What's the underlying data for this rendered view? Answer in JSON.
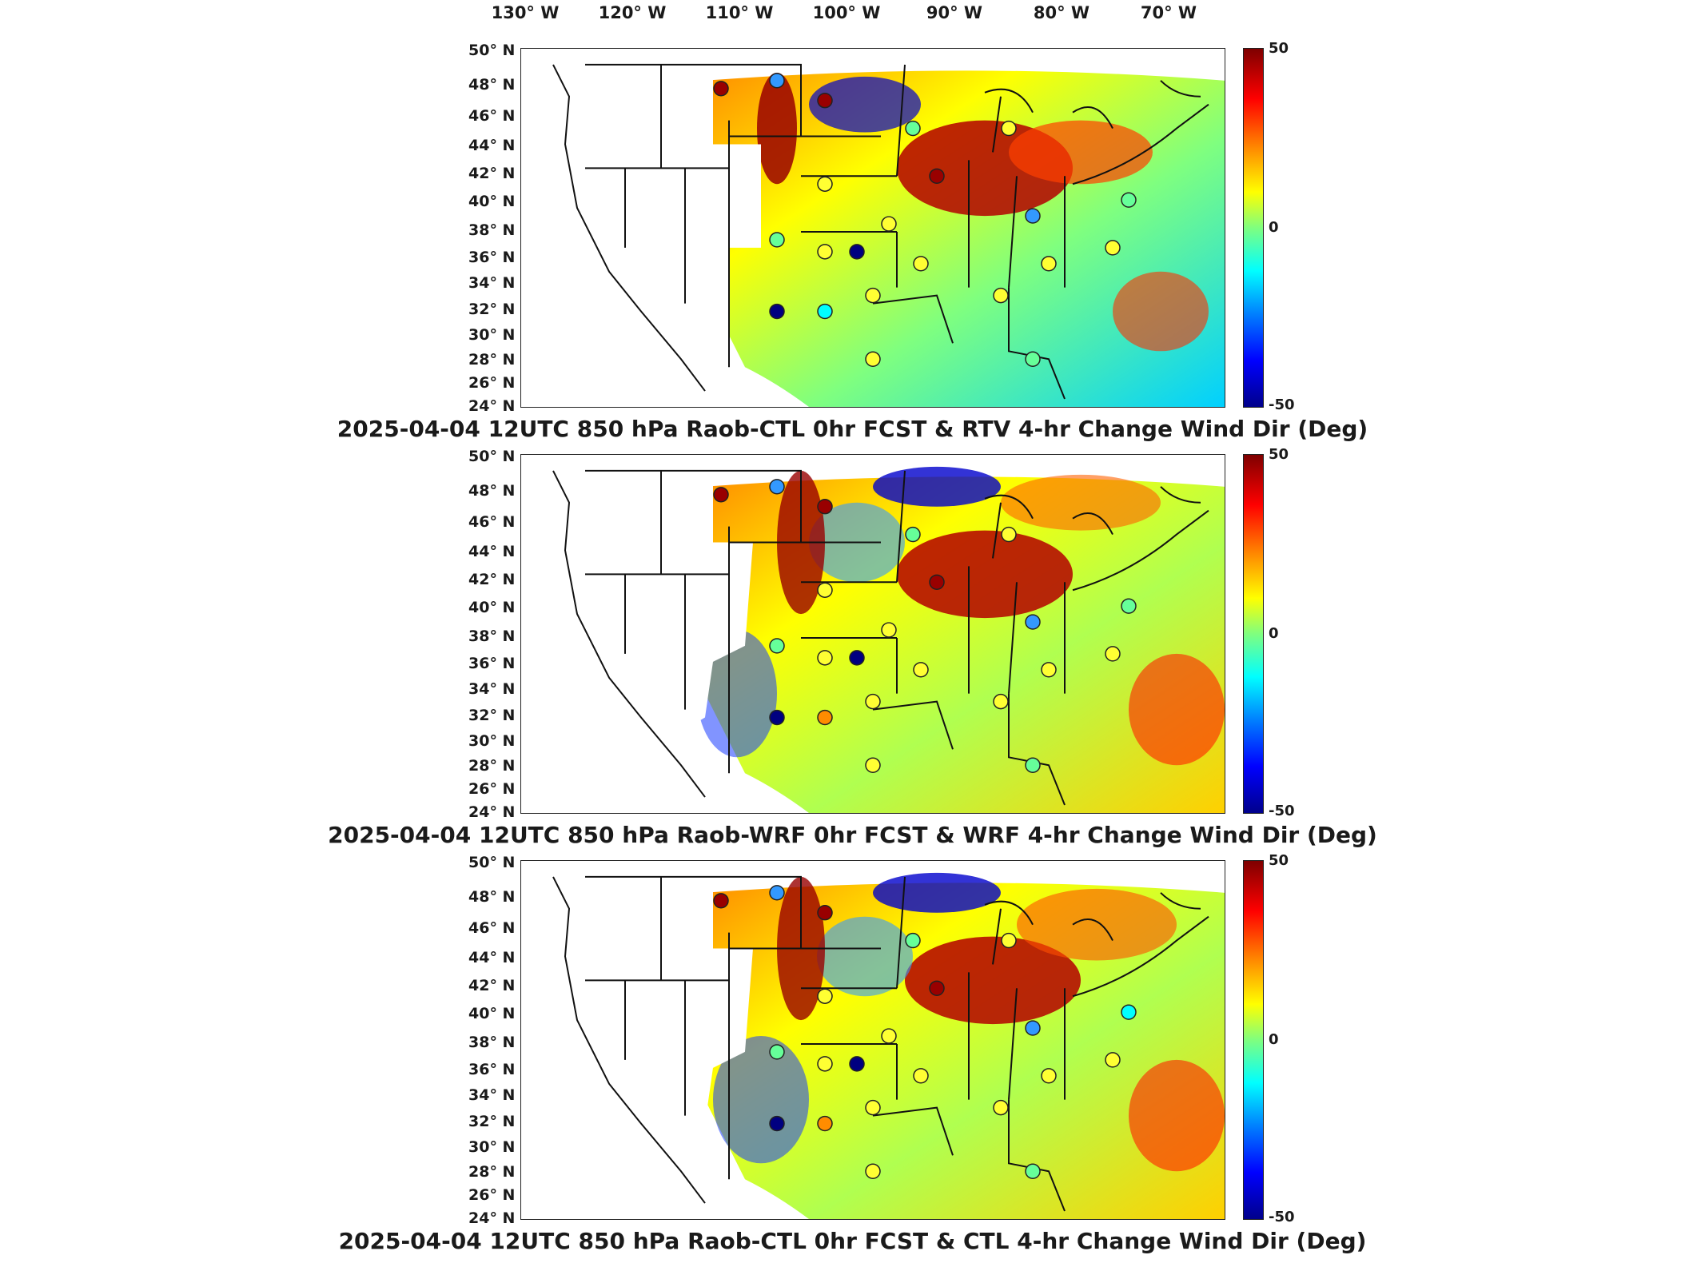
{
  "longitude_labels": [
    "130° W",
    "120° W",
    "110° W",
    "100° W",
    "90° W",
    "80° W",
    "70° W"
  ],
  "latitude_labels": [
    "50° N",
    "48° N",
    "46° N",
    "44° N",
    "42° N",
    "40° N",
    "38° N",
    "36° N",
    "34° N",
    "32° N",
    "30° N",
    "28° N",
    "26° N",
    "24° N"
  ],
  "colorbar": {
    "max_label": "50",
    "mid_label": "0",
    "min_label": "-50",
    "colors": [
      "#7f0000",
      "#ff0000",
      "#ff8c00",
      "#ffff00",
      "#7fff7f",
      "#00ffff",
      "#0080ff",
      "#0000ff",
      "#00008b"
    ]
  },
  "panels": [
    {
      "title": "2025-04-04 12UTC 850 hPa Raob-CTL 0hr FCST & RTV 4-hr Change Wind Dir (Deg)"
    },
    {
      "title": "2025-04-04 12UTC 850 hPa Raob-WRF 0hr FCST & WRF 4-hr Change Wind Dir (Deg)"
    },
    {
      "title": "2025-04-04 12UTC 850 hPa Raob-CTL 0hr FCST & CTL 4-hr Change Wind Dir (Deg)"
    }
  ]
}
